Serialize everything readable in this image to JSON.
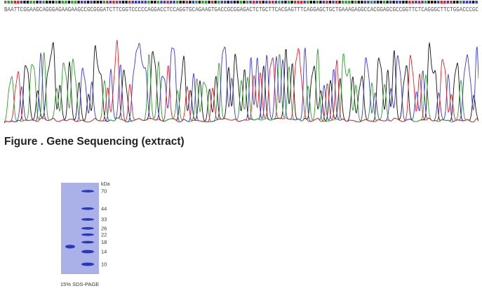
{
  "sequence": {
    "bases": "BAATTCGGAAGCAGGGAGAAGAAGCCGCGGGATCTTCGGTCCCCCAGGACCTCCAGGTGCAGAAGTGACCGCGGAGACTCTGCTTCACGAGTTTCAGGAGCTGCTGAAAGAGGCCACGGAGCGCCGGTTCTCAGGGCTTCTGGACCCGC",
    "colors": {
      "A": "#2e9e2e",
      "C": "#3a3acb",
      "G": "#111111",
      "T": "#d9262a",
      "B": "#777777"
    }
  },
  "figure": {
    "caption": "Figure . Gene Sequencing (extract)"
  },
  "gel": {
    "unit": "kDa",
    "caption": "15% SDS-PAGE",
    "markers": [
      {
        "label": "70",
        "kda": 70
      },
      {
        "label": "44",
        "kda": 44
      },
      {
        "label": "33",
        "kda": 33
      },
      {
        "label": "26",
        "kda": 26
      },
      {
        "label": "22",
        "kda": 22
      },
      {
        "label": "18",
        "kda": 18
      },
      {
        "label": "14",
        "kda": 14
      },
      {
        "label": "10",
        "kda": 10
      }
    ],
    "sample_band_kda": 16,
    "colors": {
      "gel": "#aab0e8",
      "band": "#2a37b8",
      "label": "#333333"
    }
  }
}
